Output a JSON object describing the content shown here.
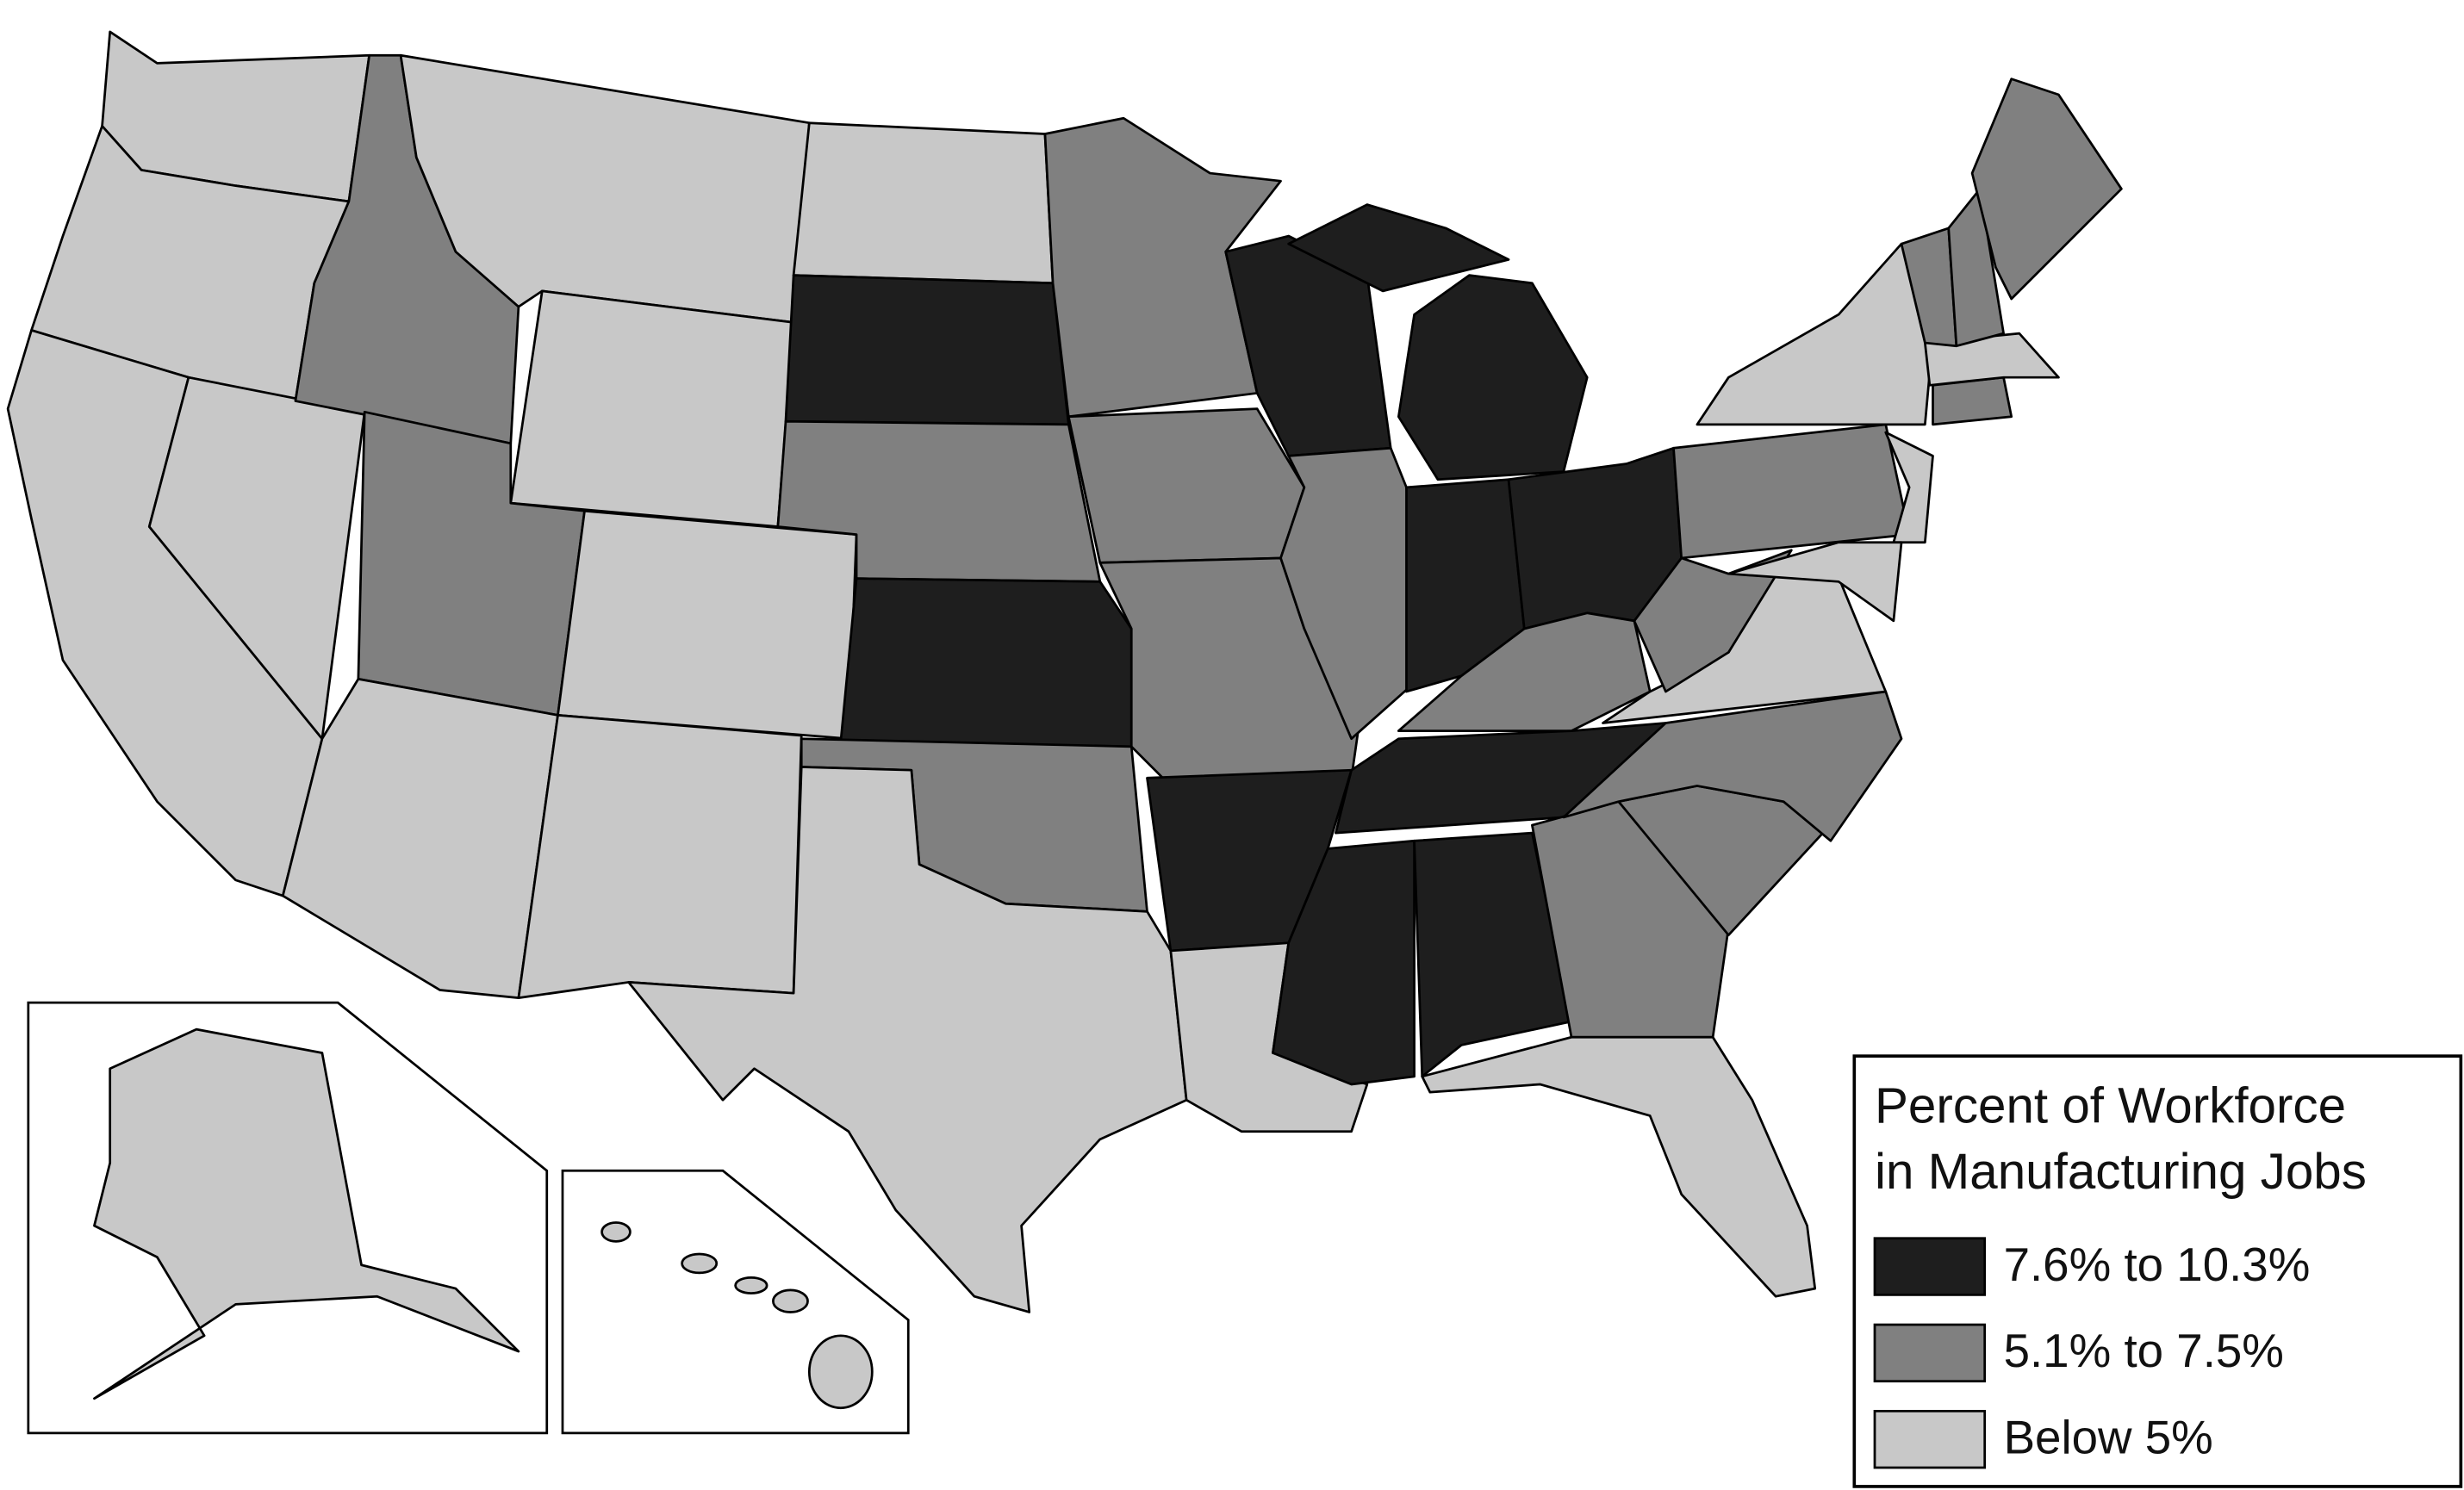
{
  "legend": {
    "title": [
      "Percent of Workforce",
      "in Manufacturing Jobs"
    ],
    "entries": [
      {
        "label": "7.6% to 10.3%",
        "color": "#1e1e1e"
      },
      {
        "label": "5.1% to 7.5%",
        "color": "#808080"
      },
      {
        "label": "Below 5%",
        "color": "#c8c8c8"
      }
    ]
  }
}
